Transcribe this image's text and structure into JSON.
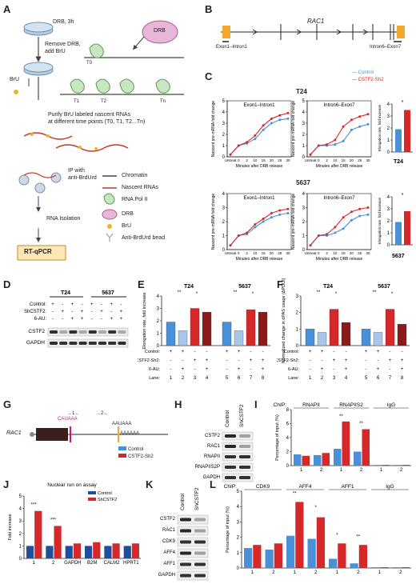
{
  "panels": {
    "A": {
      "label": "A",
      "steps": [
        "DRB, 3h",
        "Remove DRB,",
        "add BrU",
        "BrU",
        "Purify BrU labeled nascent RNAs",
        "at different time points (T0, T1, T2...Tn)",
        "IP with",
        "anti-BrdUrd",
        "RNA Isolation",
        "RT-qPCR"
      ],
      "drb": "DRB",
      "times": [
        "T0",
        "T1",
        "T2",
        "Tn"
      ],
      "legend": [
        "Chromatin",
        "Nascent RNAs",
        "RNA Pol II",
        "DRB",
        "BrU",
        "Anti-BrdUrd bead"
      ]
    },
    "B": {
      "label": "B",
      "gene": "RAC1",
      "left": "Exon1–Intron1",
      "right": "Intron6–Exon7"
    },
    "C": {
      "label": "C",
      "legend": [
        "Control",
        "CSTF2-Sh2"
      ],
      "rows": [
        {
          "cell": "T24"
        },
        {
          "cell": "5637"
        }
      ],
      "titles": [
        "Exon1–Intron1",
        "Intron6–Exon7"
      ],
      "ylabel": "Nascent pre-mRNA fold change",
      "xlabel": "Minutes after DRB release",
      "xticks": [
        "Untreat",
        "0",
        "2",
        "10",
        "15",
        "20",
        "25",
        "30"
      ],
      "bar_ylabel": "Elongation rate, fold increase",
      "star": "*"
    },
    "D": {
      "label": "D",
      "cells": [
        "T24",
        "5637"
      ],
      "rows": [
        "Control:",
        "ShCSTF2:",
        "6-AU:"
      ],
      "signs": [
        [
          "+",
          "-",
          "+",
          "-",
          "+",
          "-",
          "+",
          "-"
        ],
        [
          "-",
          "+",
          "-",
          "+",
          "-",
          "+",
          "-",
          "+"
        ],
        [
          "-",
          "-",
          "+",
          "+",
          "-",
          "-",
          "+",
          "+"
        ]
      ],
      "bands": [
        "CSTF2",
        "GAPDH"
      ]
    },
    "E": {
      "label": "E",
      "cells": [
        "T24",
        "5637"
      ],
      "ylabel": "Elongation rate, fold increase",
      "rows": [
        "Control:",
        "CSTF2-Sh2:",
        "6-AU:",
        "Lane:"
      ],
      "lanes": [
        "1",
        "2",
        "3",
        "4",
        "5",
        "6",
        "7",
        "8"
      ],
      "signs": [
        [
          "+",
          "+",
          "-",
          "-",
          "+",
          "+",
          "-",
          "-"
        ],
        [
          "-",
          "-",
          "+",
          "+",
          "-",
          "-",
          "+",
          "+"
        ],
        [
          "-",
          "+",
          "-",
          "+",
          "-",
          "+",
          "-",
          "+"
        ]
      ]
    },
    "F": {
      "label": "F",
      "cells": [
        "T24",
        "5637"
      ],
      "ylabel": "Normalized change in dPAS usage (ΔPDUI)",
      "rows": [
        "Control:",
        "CSTF2-Sh2:",
        "6-AU:",
        "Lane:"
      ],
      "lanes": [
        "1",
        "2",
        "3",
        "4",
        "5",
        "6",
        "7",
        "8"
      ]
    },
    "G": {
      "label": "G",
      "gene": "RAC1",
      "motif1": "CAUAAA",
      "motif2": "AAUAAA",
      "tail": "AAAAAA",
      "p1": "→1←",
      "p2": "→2←",
      "legend": [
        "Control",
        "CSTF2-Sh2"
      ]
    },
    "H": {
      "label": "H",
      "cols": [
        "Control",
        "ShCSTF2"
      ],
      "bands": [
        "CSTF2",
        "RAC1",
        "RNAPII",
        "RNAPIIS2P",
        "GAPDH"
      ]
    },
    "I": {
      "label": "I",
      "chip": "ChIP:",
      "groups": [
        "RNAPII",
        "RNAPIIS2",
        "IgG"
      ],
      "ylabel": "Percentage of input (%)",
      "ticks": [
        "1",
        "2",
        "1",
        "2",
        "1",
        "2"
      ]
    },
    "J": {
      "label": "J",
      "title": "Nuclear run on assay",
      "legend": [
        "Control",
        "ShCSTF2"
      ],
      "ylabel": "Fold increase",
      "cats": [
        "1",
        "2",
        "GAPDH",
        "B2M",
        "CALM2",
        "HPRT1"
      ]
    },
    "K": {
      "label": "K",
      "cols": [
        "Control",
        "ShCSTF2"
      ],
      "bands": [
        "CSTF2",
        "RAC1",
        "CDK9",
        "AFF4",
        "AFF1",
        "GAPDH"
      ]
    },
    "L": {
      "label": "L",
      "chip": "ChIP:",
      "groups": [
        "CDK9",
        "AFF4",
        "AFF1",
        "IgG"
      ],
      "ylabel": "Percentage of input (%)",
      "ticks": [
        "1",
        "2",
        "1",
        "2",
        "1",
        "2",
        "1",
        "2"
      ]
    }
  },
  "colors": {
    "control": "#4a90d9",
    "sh": "#d62828",
    "dark": "#8b1a1a",
    "navy": "#1f4e9c"
  },
  "chart_data": [
    {
      "id": "C-T24-ex",
      "type": "line",
      "x": [
        "Untreat",
        "0",
        "2",
        "10",
        "15",
        "20",
        "25",
        "30"
      ],
      "ylim": [
        0,
        5
      ],
      "yticks": [
        0,
        1,
        2,
        3,
        4,
        5
      ],
      "series": [
        {
          "name": "Control",
          "values": [
            0.2,
            1,
            1.2,
            1.6,
            2.4,
            3.0,
            3.3,
            3.4
          ]
        },
        {
          "name": "CSTF2-Sh2",
          "values": [
            0.2,
            1,
            1.3,
            1.9,
            2.8,
            3.4,
            3.7,
            3.9
          ]
        }
      ]
    },
    {
      "id": "C-T24-in",
      "type": "line",
      "x": [
        "Untreat",
        "0",
        "2",
        "10",
        "15",
        "20",
        "25",
        "30"
      ],
      "ylim": [
        0,
        5
      ],
      "yticks": [
        0,
        1,
        2,
        3,
        4,
        5
      ],
      "series": [
        {
          "name": "Control",
          "values": [
            0.2,
            1,
            1.0,
            1.1,
            1.4,
            2.4,
            2.7,
            2.9
          ]
        },
        {
          "name": "CSTF2-Sh2",
          "values": [
            0.2,
            1,
            1.1,
            1.5,
            2.7,
            3.3,
            3.6,
            3.8
          ]
        }
      ]
    },
    {
      "id": "C-T24-bar",
      "type": "bar",
      "categories": [
        "Control",
        "CSTF2-Sh2"
      ],
      "values": [
        1.9,
        3.5
      ],
      "ylim": [
        0,
        4
      ],
      "yticks": [
        0,
        1,
        2,
        3,
        4
      ]
    },
    {
      "id": "C-5637-ex",
      "type": "line",
      "x": [
        "Untreat",
        "0",
        "2",
        "10",
        "15",
        "20",
        "25",
        "30"
      ],
      "ylim": [
        0,
        4
      ],
      "yticks": [
        0,
        1,
        2,
        3,
        4
      ],
      "series": [
        {
          "name": "Control",
          "values": [
            0.3,
            1,
            1.1,
            1.6,
            2.0,
            2.3,
            2.5,
            2.6
          ]
        },
        {
          "name": "CSTF2-Sh2",
          "values": [
            0.3,
            1,
            1.2,
            1.8,
            2.2,
            2.6,
            2.8,
            2.9
          ]
        }
      ]
    },
    {
      "id": "C-5637-in",
      "type": "line",
      "x": [
        "Untreat",
        "0",
        "2",
        "10",
        "15",
        "20",
        "25",
        "30"
      ],
      "ylim": [
        0,
        4
      ],
      "yticks": [
        0,
        1,
        2,
        3,
        4
      ],
      "series": [
        {
          "name": "Control",
          "values": [
            0.3,
            1,
            1.0,
            1.2,
            1.5,
            2.1,
            2.4,
            2.5
          ]
        },
        {
          "name": "CSTF2-Sh2",
          "values": [
            0.3,
            1,
            1.1,
            1.6,
            2.3,
            2.7,
            2.9,
            3.0
          ]
        }
      ]
    },
    {
      "id": "C-5637-bar",
      "type": "bar",
      "categories": [
        "Control",
        "CSTF2-Sh2"
      ],
      "values": [
        1.9,
        2.8
      ],
      "ylim": [
        0,
        4
      ],
      "yticks": [
        0,
        1,
        2,
        3,
        4
      ]
    },
    {
      "id": "E",
      "type": "bar",
      "categories": [
        "1",
        "2",
        "3",
        "4",
        "5",
        "6",
        "7",
        "8"
      ],
      "values": [
        1.9,
        1.2,
        3.0,
        2.7,
        1.9,
        1.2,
        2.9,
        2.7
      ],
      "ylim": [
        0,
        4
      ],
      "yticks": [
        0,
        1,
        2,
        3,
        4
      ]
    },
    {
      "id": "F",
      "type": "bar",
      "categories": [
        "1",
        "2",
        "3",
        "4",
        "5",
        "6",
        "7",
        "8"
      ],
      "values": [
        1.0,
        0.8,
        2.2,
        1.4,
        1.0,
        0.8,
        2.2,
        1.3
      ],
      "ylim": [
        0,
        3
      ],
      "yticks": [
        0,
        1,
        2,
        3
      ]
    },
    {
      "id": "I",
      "type": "bar",
      "categories": [
        "RNAPII-1",
        "RNAPII-2",
        "RNAPIIS2-1",
        "RNAPIIS2-2",
        "IgG-1",
        "IgG-2"
      ],
      "series": [
        {
          "name": "Control",
          "values": [
            1.6,
            1.5,
            2.4,
            2.0,
            0.1,
            0.1
          ]
        },
        {
          "name": "CSTF2-Sh2",
          "values": [
            1.4,
            1.8,
            6.3,
            5.2,
            0.1,
            0.1
          ]
        }
      ],
      "ylim": [
        0,
        8
      ],
      "yticks": [
        0,
        2,
        4,
        6,
        8
      ]
    },
    {
      "id": "J",
      "type": "bar",
      "categories": [
        "1",
        "2",
        "GAPDH",
        "B2M",
        "CALM2",
        "HPRT1"
      ],
      "series": [
        {
          "name": "Control",
          "values": [
            1,
            1,
            1,
            1,
            1,
            1
          ]
        },
        {
          "name": "ShCSTF2",
          "values": [
            3.8,
            2.6,
            1.2,
            1.3,
            1.2,
            1.2
          ]
        }
      ],
      "ylim": [
        0,
        5
      ],
      "yticks": [
        0,
        1,
        2,
        3,
        4,
        5
      ]
    },
    {
      "id": "L",
      "type": "bar",
      "categories": [
        "CDK9-1",
        "CDK9-2",
        "AFF4-1",
        "AFF4-2",
        "AFF1-1",
        "AFF1-2",
        "IgG-1",
        "IgG-2"
      ],
      "series": [
        {
          "name": "Control",
          "values": [
            1.3,
            1.2,
            2.1,
            1.9,
            0.6,
            0.3,
            0.05,
            0.05
          ]
        },
        {
          "name": "CSTF2-Sh2",
          "values": [
            1.5,
            1.6,
            4.3,
            3.3,
            1.6,
            1.5,
            0.05,
            0.05
          ]
        }
      ],
      "ylim": [
        0,
        5
      ],
      "yticks": [
        0,
        1,
        2,
        3,
        4,
        5
      ]
    }
  ]
}
